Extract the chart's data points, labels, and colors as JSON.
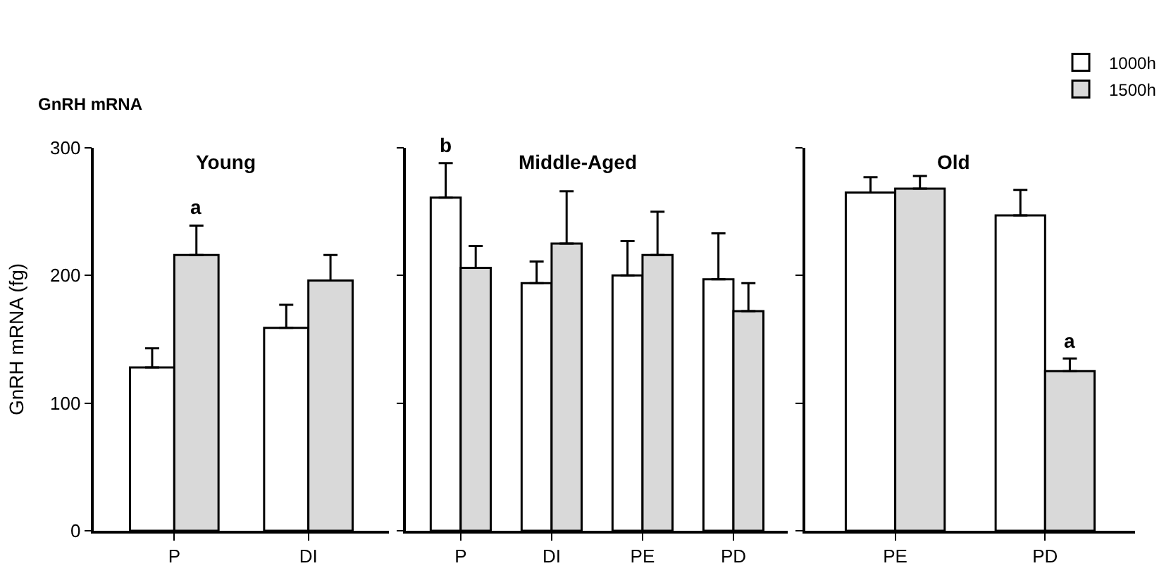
{
  "chart_data": [
    {
      "type": "bar",
      "title": "Young",
      "ylabel": "GnRH mRNA (fg)",
      "annotations": [
        "GnRH mRNA",
        {
          "text": "a",
          "x": "P",
          "y": 216
        }
      ],
      "categories": [
        "P",
        "DI"
      ],
      "ylim": [
        0,
        300
      ],
      "yticks": [
        0,
        100,
        200,
        300
      ],
      "legend": false,
      "series": [
        {
          "color": "#ffffff",
          "values": [
            128,
            159
          ],
          "errors": [
            [
              128,
              143
            ],
            [
              159,
              177
            ]
          ]
        },
        {
          "color": "#d9d9d9",
          "values": [
            216,
            196
          ],
          "errors": [
            [
              216,
              239
            ],
            [
              196,
              216
            ]
          ]
        }
      ]
    },
    {
      "type": "bar",
      "title": "Middle-Aged",
      "annotations": [
        {
          "text": "b",
          "x": "P",
          "y": 261
        }
      ],
      "categories": [
        "P",
        "DI",
        "PE",
        "PD"
      ],
      "ylim": [
        0,
        300
      ],
      "yticks": [
        0,
        100,
        200,
        300
      ],
      "tick_labels": "x",
      "legend": false,
      "series": [
        {
          "color": "#ffffff",
          "values": [
            261,
            194,
            200,
            197
          ],
          "errors": [
            [
              261,
              288
            ],
            [
              194,
              211
            ],
            [
              200,
              227
            ],
            [
              197,
              233
            ]
          ]
        },
        {
          "color": "#d9d9d9",
          "values": [
            206,
            225,
            216,
            172
          ],
          "errors": [
            [
              206,
              223
            ],
            [
              225,
              266
            ],
            [
              216,
              250
            ],
            [
              172,
              194
            ]
          ]
        }
      ]
    },
    {
      "type": "bar",
      "title": "Old",
      "annotations": [
        {
          "text": "a",
          "x": "PD",
          "y": 125
        }
      ],
      "categories": [
        "PE",
        "PD"
      ],
      "ylim": [
        0,
        300
      ],
      "yticks": [
        0,
        100,
        200,
        300
      ],
      "tick_labels": "x",
      "legend": "top right",
      "series": [
        {
          "name": "1000h",
          "color": "#ffffff",
          "values": [
            265,
            247
          ],
          "errors": [
            [
              265,
              277
            ],
            [
              247,
              267
            ]
          ]
        },
        {
          "name": "1500h",
          "color": "#d9d9d9",
          "values": [
            268,
            125
          ],
          "errors": [
            [
              268,
              278
            ],
            [
              125,
              135
            ]
          ]
        }
      ]
    }
  ]
}
